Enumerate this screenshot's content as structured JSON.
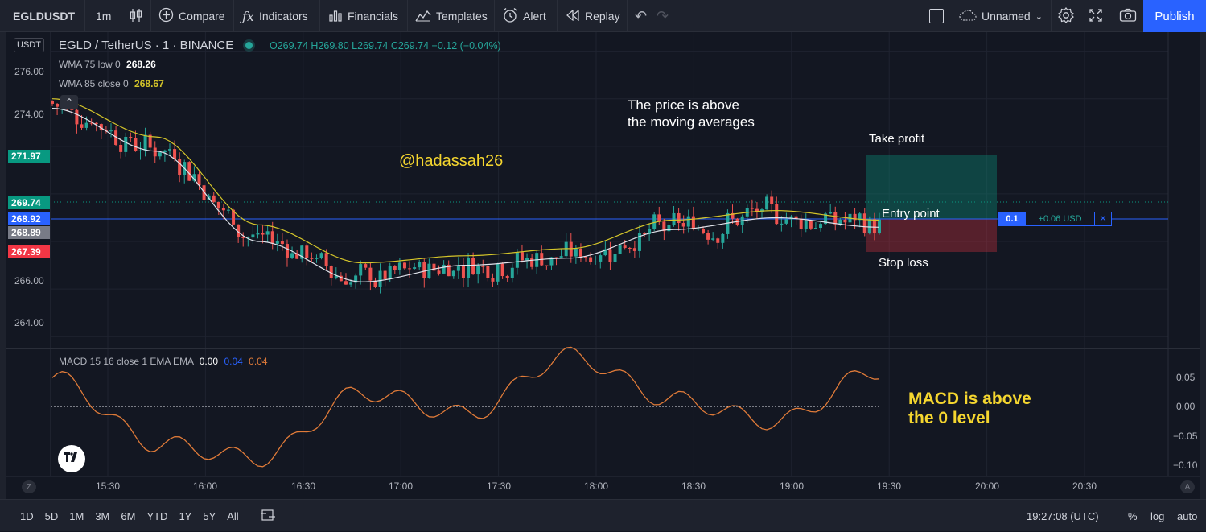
{
  "toolbar": {
    "symbol": "EGLDUSDT",
    "interval": "1m",
    "compare": "Compare",
    "indicators": "Indicators",
    "financials": "Financials",
    "templates": "Templates",
    "alert": "Alert",
    "replay": "Replay",
    "layout_name": "Unnamed",
    "publish": "Publish"
  },
  "legend": {
    "currency_badge": "USDT",
    "title": "EGLD / TetherUS · 1 · BINANCE",
    "ohlc": "O269.74 H269.80 L269.74 C269.74 −0.12 (−0.04%)",
    "wma1_label": "WMA 75 low 0",
    "wma1_value": "268.26",
    "wma2_label": "WMA 85 close 0",
    "wma2_value": "268.67",
    "macd_label": "MACD 15 16 close 1 EMA EMA",
    "macd_v1": "0.00",
    "macd_v2": "0.04",
    "macd_v3": "0.04"
  },
  "price_axis": {
    "labels": [
      "276.00",
      "274.00",
      "266.00",
      "264.00"
    ],
    "badges": [
      {
        "text": "271.97",
        "color": "#089981"
      },
      {
        "text": "269.74",
        "color": "#089981"
      },
      {
        "text": "268.92",
        "color": "#2962ff"
      },
      {
        "text": "268.89",
        "color": "#787b86"
      },
      {
        "text": "267.39",
        "color": "#f23645"
      }
    ]
  },
  "macd_axis": {
    "labels": [
      "0.05",
      "0.00",
      "−0.05",
      "−0.10"
    ]
  },
  "time_axis": {
    "labels": [
      "15:30",
      "16:00",
      "16:30",
      "17:00",
      "17:30",
      "18:00",
      "18:30",
      "19:00",
      "19:30",
      "20:00",
      "20:30"
    ]
  },
  "annotations": {
    "watermark": "@hadassah26",
    "price_note_line1": "The price is above",
    "price_note_line2": "the moving averages",
    "take_profit": "Take profit",
    "entry_point": "Entry point",
    "stop_loss": "Stop loss",
    "macd_note_line1": "MACD is above",
    "macd_note_line2": "the 0 level"
  },
  "position": {
    "qty": "0.1",
    "pnl": "+0.06 USD"
  },
  "bottom": {
    "ranges": [
      "1D",
      "5D",
      "1M",
      "3M",
      "6M",
      "YTD",
      "1Y",
      "5Y",
      "All"
    ],
    "clock": "19:27:08 (UTC)",
    "percent": "%",
    "log": "log",
    "auto": "auto"
  },
  "colors": {
    "up": "#26a69a",
    "down": "#ef5350",
    "wma_white": "#e0e3eb",
    "wma_yellow": "#d4c52a",
    "macd": "#e07b39",
    "entry_line": "#2962ff"
  },
  "chart_data": {
    "type": "line",
    "title": "EGLD / TetherUS · 1 · BINANCE",
    "price_ylim": [
      263.5,
      276.8
    ],
    "macd_ylim": [
      -0.105,
      0.07
    ],
    "x": [
      "15:30",
      "16:00",
      "16:30",
      "17:00",
      "17:30",
      "18:00",
      "18:30",
      "19:00",
      "19:30"
    ],
    "series": [
      {
        "name": "WMA 75 low 0",
        "values": [
          273.6,
          271.8,
          268.0,
          266.3,
          267.0,
          267.3,
          268.5,
          269.0,
          268.6
        ]
      },
      {
        "name": "WMA 85 close 0",
        "values": [
          274.0,
          272.4,
          268.7,
          267.1,
          267.4,
          267.7,
          268.9,
          269.3,
          268.9
        ]
      },
      {
        "name": "MACD 15 16 close 1 EMA EMA",
        "values": [
          0.03,
          -0.06,
          -0.08,
          0.01,
          -0.02,
          0.06,
          0.0,
          -0.03,
          0.04
        ]
      }
    ],
    "levels": {
      "take_profit": 271.97,
      "entry": 268.92,
      "stop_loss": 267.39,
      "last": 269.74
    }
  }
}
